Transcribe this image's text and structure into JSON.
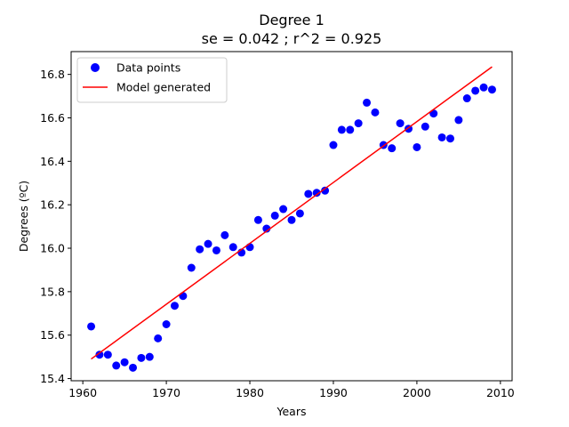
{
  "chart_data": {
    "type": "scatter",
    "title": "Degree 1",
    "subtitle": "se = 0.042 ; r^2 = 0.925",
    "xlabel": "Years",
    "ylabel": "Degrees (ºC)",
    "xlim": [
      1958.6,
      2011.4
    ],
    "ylim": [
      15.39,
      16.905
    ],
    "xticks": [
      1960,
      1970,
      1980,
      1990,
      2000,
      2010
    ],
    "yticks": [
      15.4,
      15.6,
      15.8,
      16.0,
      16.2,
      16.4,
      16.6,
      16.8
    ],
    "legend_position": "upper-left",
    "grid": false,
    "series": [
      {
        "name": "Data points",
        "kind": "scatter",
        "color": "#0000ff",
        "points": [
          [
            1961,
            15.64
          ],
          [
            1962,
            15.51
          ],
          [
            1963,
            15.51
          ],
          [
            1964,
            15.46
          ],
          [
            1965,
            15.475
          ],
          [
            1966,
            15.45
          ],
          [
            1967,
            15.495
          ],
          [
            1968,
            15.5
          ],
          [
            1969,
            15.585
          ],
          [
            1970,
            15.65
          ],
          [
            1971,
            15.735
          ],
          [
            1972,
            15.78
          ],
          [
            1973,
            15.91
          ],
          [
            1974,
            15.995
          ],
          [
            1975,
            16.02
          ],
          [
            1976,
            15.99
          ],
          [
            1977,
            16.06
          ],
          [
            1978,
            16.005
          ],
          [
            1979,
            15.98
          ],
          [
            1980,
            16.005
          ],
          [
            1981,
            16.13
          ],
          [
            1982,
            16.09
          ],
          [
            1983,
            16.15
          ],
          [
            1984,
            16.18
          ],
          [
            1985,
            16.13
          ],
          [
            1986,
            16.16
          ],
          [
            1987,
            16.25
          ],
          [
            1988,
            16.255
          ],
          [
            1989,
            16.265
          ],
          [
            1990,
            16.475
          ],
          [
            1991,
            16.545
          ],
          [
            1992,
            16.545
          ],
          [
            1993,
            16.575
          ],
          [
            1994,
            16.67
          ],
          [
            1995,
            16.625
          ],
          [
            1996,
            16.475
          ],
          [
            1997,
            16.46
          ],
          [
            1998,
            16.575
          ],
          [
            1999,
            16.55
          ],
          [
            2000,
            16.465
          ],
          [
            2001,
            16.56
          ],
          [
            2002,
            16.62
          ],
          [
            2003,
            16.51
          ],
          [
            2004,
            16.505
          ],
          [
            2005,
            16.59
          ],
          [
            2006,
            16.69
          ],
          [
            2007,
            16.725
          ],
          [
            2008,
            16.74
          ],
          [
            2009,
            16.73
          ]
        ]
      },
      {
        "name": "Model generated",
        "kind": "line",
        "color": "#ff0000",
        "points": [
          [
            1961,
            15.49
          ],
          [
            2009,
            16.835
          ]
        ]
      }
    ]
  }
}
